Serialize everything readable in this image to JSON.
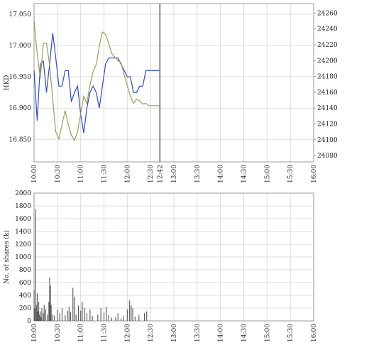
{
  "chart_data": [
    {
      "type": "line",
      "ylabel": "HKD",
      "x": [
        "10:00",
        "10:04",
        "10:08",
        "10:12",
        "10:16",
        "10:20",
        "10:24",
        "10:28",
        "10:32",
        "10:36",
        "10:40",
        "10:44",
        "10:48",
        "10:52",
        "10:56",
        "11:00",
        "11:04",
        "11:08",
        "11:12",
        "11:16",
        "11:20",
        "11:24",
        "11:28",
        "11:32",
        "11:36",
        "11:40",
        "11:44",
        "11:48",
        "11:52",
        "11:56",
        "12:00",
        "12:04",
        "12:08",
        "12:12",
        "12:16",
        "12:20",
        "12:24",
        "12:28",
        "12:32",
        "12:36",
        "12:40",
        "12:42"
      ],
      "series": [
        {
          "color": "#2a4bd0",
          "values": [
            16.96,
            16.88,
            16.97,
            16.975,
            16.925,
            16.97,
            17.02,
            16.98,
            16.935,
            16.935,
            16.96,
            16.96,
            16.91,
            16.925,
            16.935,
            16.89,
            16.86,
            16.9,
            16.925,
            16.935,
            16.925,
            16.9,
            16.935,
            16.97,
            16.98,
            16.98,
            16.98,
            16.98,
            16.97,
            16.96,
            16.95,
            16.95,
            16.925,
            16.925,
            16.935,
            16.935,
            16.96,
            16.96,
            16.96,
            16.96,
            16.96,
            16.96
          ]
        },
        {
          "color": "#a39c55",
          "axis": "y2",
          "values": [
            24251,
            24209,
            24177,
            24222,
            24222,
            24195,
            24151,
            24110,
            24101,
            24119,
            24137,
            24119,
            24106,
            24099,
            24110,
            24133,
            24155,
            24146,
            24169,
            24186,
            24195,
            24218,
            24236,
            24233,
            24222,
            24209,
            24204,
            24200,
            24197,
            24182,
            24169,
            24155,
            24146,
            24151,
            24149,
            24145,
            24146,
            24143,
            24143,
            24143,
            24143,
            24143
          ]
        }
      ],
      "xlim": [
        "10:00",
        "16:00"
      ],
      "xticks": [
        "10:00",
        "10:30",
        "11:00",
        "11:30",
        "12:00",
        "12:30",
        "12:42",
        "13:00",
        "13:30",
        "14:00",
        "14:30",
        "15:00",
        "15:30",
        "16:00"
      ],
      "ylim": [
        16.814,
        17.067
      ],
      "yticks": [
        {
          "value": 16.85,
          "label": "16.850"
        },
        {
          "value": 16.9,
          "label": "16.900"
        },
        {
          "value": 16.95,
          "label": "16.950"
        },
        {
          "value": 17.0,
          "label": "17.000"
        },
        {
          "value": 17.05,
          "label": "17.050"
        }
      ],
      "y2lim": [
        24072,
        24272
      ],
      "y2ticks": [
        24080,
        24100,
        24120,
        24140,
        24160,
        24180,
        24200,
        24220,
        24240,
        24260
      ],
      "grid": true
    },
    {
      "type": "bar",
      "ylabel": "No. of shares (k)",
      "color": "#555555",
      "x": [
        "10:00",
        "10:01",
        "10:02",
        "10:03",
        "10:04",
        "10:05",
        "10:06",
        "10:07",
        "10:08",
        "10:09",
        "10:10",
        "10:12",
        "10:13",
        "10:15",
        "10:17",
        "10:19",
        "10:20",
        "10:21",
        "10:22",
        "10:24",
        "10:26",
        "10:30",
        "10:33",
        "10:36",
        "10:40",
        "10:43",
        "10:45",
        "10:47",
        "10:50",
        "10:52",
        "10:54",
        "10:57",
        "11:00",
        "11:02",
        "11:05",
        "11:08",
        "11:12",
        "11:15",
        "11:22",
        "11:26",
        "11:30",
        "11:33",
        "11:36",
        "11:40",
        "11:45",
        "11:48",
        "11:52",
        "11:55",
        "12:00",
        "12:03",
        "12:05",
        "12:07",
        "12:10",
        "12:15",
        "12:22",
        "12:25"
      ],
      "values": [
        480,
        200,
        1750,
        250,
        430,
        150,
        300,
        100,
        150,
        60,
        200,
        120,
        250,
        180,
        100,
        300,
        680,
        550,
        250,
        100,
        80,
        180,
        120,
        200,
        90,
        160,
        220,
        140,
        520,
        380,
        100,
        240,
        160,
        300,
        200,
        120,
        180,
        80,
        100,
        200,
        140,
        220,
        90,
        50,
        60,
        120,
        40,
        80,
        180,
        320,
        240,
        200,
        70,
        90,
        120,
        150
      ],
      "xlim": [
        "10:00",
        "16:00"
      ],
      "xticks": [
        "10:00",
        "10:30",
        "11:00",
        "11:30",
        "12:00",
        "12:30",
        "13:00",
        "13:30",
        "14:00",
        "14:30",
        "15:00",
        "15:30",
        "16:00"
      ],
      "ylim": [
        0,
        2000
      ],
      "yticks": [
        0,
        200,
        400,
        600,
        800,
        1000,
        1200,
        1400,
        1600,
        1800,
        2000
      ],
      "grid": true
    }
  ]
}
